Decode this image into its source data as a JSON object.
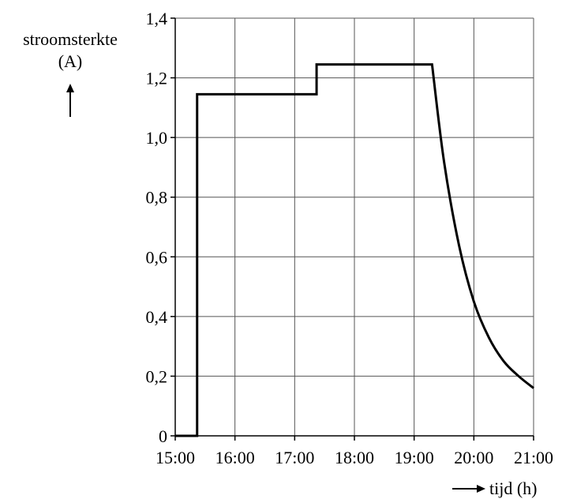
{
  "chart_data": {
    "type": "line",
    "title": "",
    "ylabel": "stroomsterkte",
    "ylabel_unit": "(A)",
    "xlabel": "tijd (h)",
    "x_tick_labels": [
      "15:00",
      "16:00",
      "17:00",
      "18:00",
      "19:00",
      "20:00",
      "21:00"
    ],
    "y_tick_labels": [
      "0",
      "0,2",
      "0,4",
      "0,6",
      "0,8",
      "1,0",
      "1,2",
      "1,4"
    ],
    "xlim": [
      "15:00",
      "21:00"
    ],
    "ylim": [
      0,
      1.4
    ],
    "grid": true,
    "series": [
      {
        "x": [
          "15:00",
          "15:22",
          "15:22",
          "17:22",
          "17:22",
          "19:18",
          "19:18",
          "19:30",
          "19:45",
          "20:00",
          "20:15",
          "20:30",
          "20:45",
          "21:00"
        ],
        "y": [
          0,
          0,
          1.145,
          1.145,
          1.245,
          1.245,
          1.245,
          0.92,
          0.64,
          0.45,
          0.33,
          0.25,
          0.2,
          0.16
        ]
      }
    ]
  }
}
